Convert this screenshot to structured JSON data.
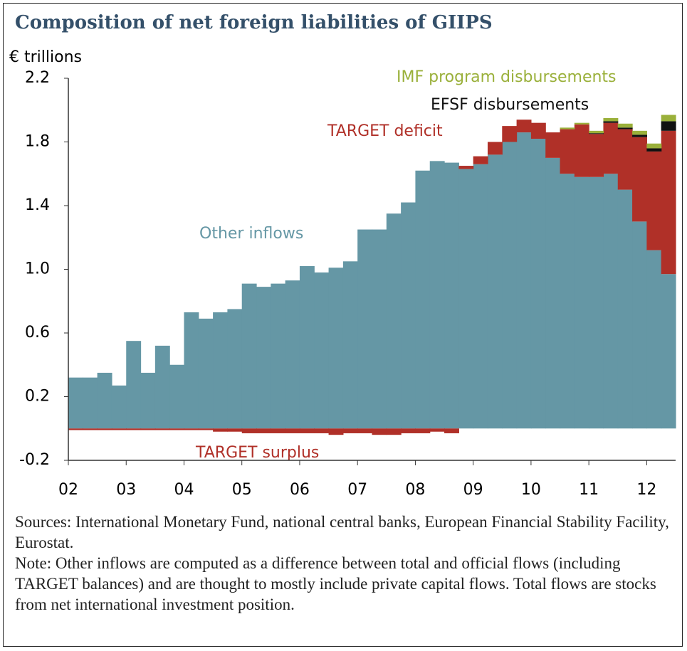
{
  "chart_data": {
    "type": "stacked-bar",
    "title": "Composition of net foreign liabilities of GIIPS",
    "y_label": "€ trillions",
    "x": [
      2002,
      2002.25,
      2002.5,
      2002.75,
      2003,
      2003.25,
      2003.5,
      2003.75,
      2004,
      2004.25,
      2004.5,
      2004.75,
      2005,
      2005.25,
      2005.5,
      2005.75,
      2006,
      2006.25,
      2006.5,
      2006.75,
      2007,
      2007.25,
      2007.5,
      2007.75,
      2008,
      2008.25,
      2008.5,
      2008.75,
      2009,
      2009.25,
      2009.5,
      2009.75,
      2010,
      2010.25,
      2010.5,
      2010.75,
      2011,
      2011.25,
      2011.5,
      2011.75,
      2012,
      2012.25
    ],
    "series": [
      {
        "name": "Other inflows",
        "color": "#6597a5",
        "values": [
          0.32,
          0.32,
          0.35,
          0.27,
          0.55,
          0.35,
          0.52,
          0.4,
          0.73,
          0.69,
          0.73,
          0.75,
          0.91,
          0.89,
          0.91,
          0.93,
          1.02,
          0.98,
          1.01,
          1.05,
          1.25,
          1.25,
          1.35,
          1.42,
          1.62,
          1.68,
          1.67,
          1.63,
          1.66,
          1.72,
          1.8,
          1.86,
          1.82,
          1.7,
          1.6,
          1.58,
          1.58,
          1.6,
          1.5,
          1.3,
          1.12,
          0.97
        ]
      },
      {
        "name": "TARGET deficit",
        "color": "#b03028",
        "values": [
          null,
          null,
          null,
          null,
          null,
          null,
          null,
          null,
          null,
          null,
          null,
          null,
          null,
          null,
          null,
          null,
          null,
          null,
          null,
          null,
          null,
          null,
          null,
          null,
          null,
          null,
          null,
          0.02,
          0.05,
          0.08,
          0.1,
          0.08,
          0.1,
          0.16,
          0.28,
          0.33,
          0.27,
          0.32,
          0.38,
          0.53,
          0.62,
          0.9
        ]
      },
      {
        "name": "EFSF disbursements",
        "color": "#111111",
        "values": [
          null,
          null,
          null,
          null,
          null,
          null,
          null,
          null,
          null,
          null,
          null,
          null,
          null,
          null,
          null,
          null,
          null,
          null,
          null,
          null,
          null,
          null,
          null,
          null,
          null,
          null,
          null,
          null,
          null,
          null,
          null,
          null,
          null,
          null,
          null,
          null,
          0.005,
          0.01,
          0.01,
          0.015,
          0.02,
          0.06
        ]
      },
      {
        "name": "IMF program disbursements",
        "color": "#9ab03a",
        "values": [
          null,
          null,
          null,
          null,
          null,
          null,
          null,
          null,
          null,
          null,
          null,
          null,
          null,
          null,
          null,
          null,
          null,
          null,
          null,
          null,
          null,
          null,
          null,
          null,
          null,
          null,
          null,
          null,
          null,
          null,
          null,
          null,
          null,
          null,
          0.01,
          0.01,
          0.015,
          0.02,
          0.025,
          0.025,
          0.03,
          0.04
        ]
      },
      {
        "name": "TARGET surplus",
        "color": "#b03028",
        "values": [
          -0.01,
          -0.01,
          -0.01,
          -0.01,
          -0.01,
          -0.01,
          -0.01,
          -0.01,
          -0.01,
          -0.01,
          -0.02,
          -0.02,
          -0.03,
          -0.03,
          -0.03,
          -0.03,
          -0.03,
          -0.03,
          -0.04,
          -0.03,
          -0.03,
          -0.04,
          -0.04,
          -0.03,
          -0.03,
          -0.02,
          -0.03,
          null,
          null,
          null,
          null,
          null,
          null,
          null,
          null,
          null,
          null,
          null,
          null,
          null,
          null,
          null
        ]
      }
    ],
    "xlim": [
      2002,
      2012.5
    ],
    "xticks": [
      {
        "value": 2002,
        "label": "02"
      },
      {
        "value": 2003,
        "label": "03"
      },
      {
        "value": 2004,
        "label": "04"
      },
      {
        "value": 2005,
        "label": "05"
      },
      {
        "value": 2006,
        "label": "06"
      },
      {
        "value": 2007,
        "label": "07"
      },
      {
        "value": 2008,
        "label": "08"
      },
      {
        "value": 2009,
        "label": "09"
      },
      {
        "value": 2010,
        "label": "10"
      },
      {
        "value": 2011,
        "label": "11"
      },
      {
        "value": 2012,
        "label": "12"
      }
    ],
    "bar_width": 0.25,
    "ylim": [
      -0.2,
      2.2
    ],
    "yticks": [
      {
        "value": -0.2,
        "label": "-0.2"
      },
      0.2,
      0.6,
      {
        "value": 1.0,
        "label": "1.0"
      },
      1.4,
      1.8,
      2.2
    ],
    "sources": "Sources: International Monetary Fund, national central banks, European Financial Stability Facility, Eurostat.",
    "note": "Note:  Other inflows are computed as a difference between total and official flows (including TARGET balances) and are thought to mostly include private capital flows. Total flows are stocks from net international investment position."
  }
}
